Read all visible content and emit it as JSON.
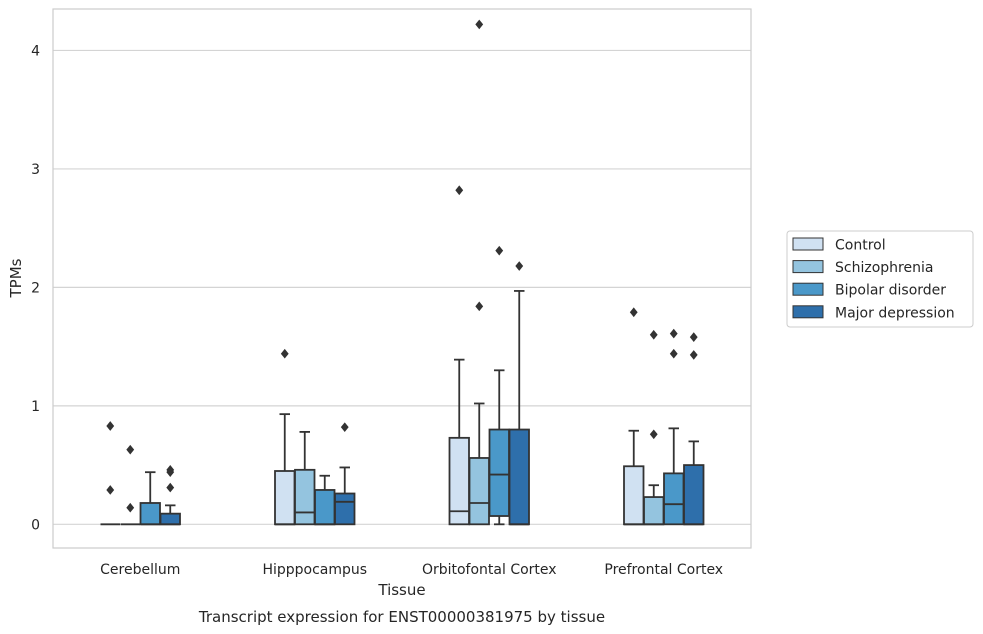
{
  "chart_data": {
    "type": "box",
    "caption": "Transcript expression for ENST00000381975 by tissue",
    "xlabel": "Tissue",
    "ylabel": "TPMs",
    "ylim": [
      -0.2,
      4.35
    ],
    "yticks": [
      0,
      1,
      2,
      3,
      4
    ],
    "grid": "horizontal",
    "legend_position": "right",
    "categories": [
      "Cerebellum",
      "Hipppocampus",
      "Orbitofontal Cortex",
      "Prefrontal Cortex"
    ],
    "series": [
      {
        "name": "Control",
        "color": "#d0e1f2",
        "boxes": [
          {
            "whislo": 0,
            "q1": 0,
            "med": 0,
            "q3": 0,
            "whishi": 0,
            "fliers": [
              0.83,
              0.29
            ]
          },
          {
            "whislo": 0,
            "q1": 0,
            "med": 0,
            "q3": 0.45,
            "whishi": 0.93,
            "fliers": [
              1.44
            ]
          },
          {
            "whislo": 0,
            "q1": 0,
            "med": 0.11,
            "q3": 0.73,
            "whishi": 1.39,
            "fliers": [
              2.82
            ]
          },
          {
            "whislo": 0,
            "q1": 0,
            "med": 0,
            "q3": 0.49,
            "whishi": 0.79,
            "fliers": [
              1.79
            ]
          }
        ]
      },
      {
        "name": "Schizophrenia",
        "color": "#94c4df",
        "boxes": [
          {
            "whislo": 0,
            "q1": 0,
            "med": 0,
            "q3": 0,
            "whishi": 0,
            "fliers": [
              0.63,
              0.14
            ]
          },
          {
            "whislo": 0,
            "q1": 0,
            "med": 0.1,
            "q3": 0.46,
            "whishi": 0.78,
            "fliers": []
          },
          {
            "whislo": 0,
            "q1": 0,
            "med": 0.18,
            "q3": 0.56,
            "whishi": 1.02,
            "fliers": [
              4.22,
              1.84
            ]
          },
          {
            "whislo": 0,
            "q1": 0,
            "med": 0,
            "q3": 0.23,
            "whishi": 0.33,
            "fliers": [
              1.6,
              0.76
            ]
          }
        ]
      },
      {
        "name": "Bipolar disorder",
        "color": "#4a98c9",
        "boxes": [
          {
            "whislo": 0,
            "q1": 0,
            "med": 0,
            "q3": 0.18,
            "whishi": 0.44,
            "fliers": []
          },
          {
            "whislo": 0,
            "q1": 0,
            "med": 0,
            "q3": 0.29,
            "whishi": 0.41,
            "fliers": []
          },
          {
            "whislo": 0,
            "q1": 0.07,
            "med": 0.42,
            "q3": 0.8,
            "whishi": 1.3,
            "fliers": [
              2.31
            ]
          },
          {
            "whislo": 0,
            "q1": 0,
            "med": 0.17,
            "q3": 0.43,
            "whishi": 0.81,
            "fliers": [
              1.61,
              1.44
            ]
          }
        ]
      },
      {
        "name": "Major depression",
        "color": "#2e6fab",
        "boxes": [
          {
            "whislo": 0,
            "q1": 0,
            "med": 0,
            "q3": 0.09,
            "whishi": 0.16,
            "fliers": [
              0.46,
              0.44,
              0.31
            ]
          },
          {
            "whislo": 0,
            "q1": 0,
            "med": 0.19,
            "q3": 0.26,
            "whishi": 0.48,
            "fliers": [
              0.82
            ]
          },
          {
            "whislo": 0,
            "q1": 0,
            "med": 0,
            "q3": 0.8,
            "whishi": 1.97,
            "fliers": [
              2.18
            ]
          },
          {
            "whislo": 0,
            "q1": 0,
            "med": 0,
            "q3": 0.5,
            "whishi": 0.7,
            "fliers": [
              1.58,
              1.43
            ]
          }
        ]
      }
    ]
  }
}
